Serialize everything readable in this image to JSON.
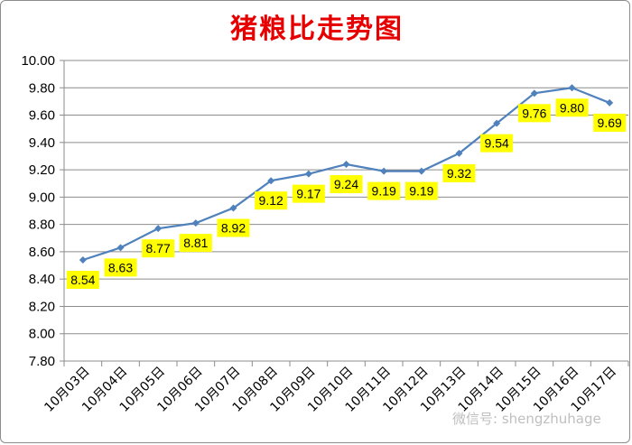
{
  "chart_data": {
    "type": "line",
    "title": "猪粮比走势图",
    "categories": [
      "10月03日",
      "10月04日",
      "10月05日",
      "10月06日",
      "10月07日",
      "10月08日",
      "10月09日",
      "10月10日",
      "10月11日",
      "10月12日",
      "10月13日",
      "10月14日",
      "10月15日",
      "10月16日",
      "10月17日"
    ],
    "values": [
      8.54,
      8.63,
      8.77,
      8.81,
      8.92,
      9.12,
      9.17,
      9.24,
      9.19,
      9.19,
      9.32,
      9.54,
      9.76,
      9.8,
      9.69
    ],
    "labels": [
      "8.54",
      "8.63",
      "8.77",
      "8.81",
      "8.92",
      "9.12",
      "9.17",
      "9.24",
      "9.19",
      "9.19",
      "9.32",
      "9.54",
      "9.76",
      "9.80",
      "9.69"
    ],
    "yticks": [
      "7.80",
      "8.00",
      "8.20",
      "8.40",
      "8.60",
      "8.80",
      "9.00",
      "9.20",
      "9.40",
      "9.60",
      "9.80",
      "10.00"
    ],
    "ylim": [
      7.8,
      10.0
    ],
    "grid": true,
    "legend": "none",
    "line_color": "#4f81bd",
    "label_bg": "#ffff00",
    "title_color": "#e60000"
  },
  "watermark": "微信号: shengzhuhage"
}
